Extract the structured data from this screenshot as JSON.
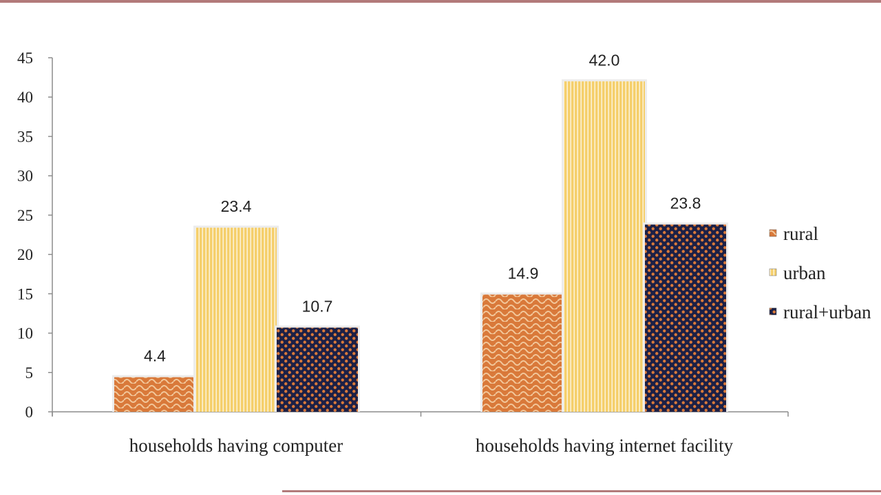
{
  "chart_data": {
    "type": "bar",
    "categories": [
      "households having computer",
      "households having internet facility"
    ],
    "series": [
      {
        "name": "rural",
        "values": [
          4.4,
          14.9
        ],
        "labels": [
          "4.4",
          "14.9"
        ],
        "color": "#d9793a",
        "pattern": "weave"
      },
      {
        "name": "urban",
        "values": [
          23.4,
          42.0
        ],
        "labels": [
          "23.4",
          "42.0"
        ],
        "color": "#f5cf6b",
        "pattern": "vertical-stripes"
      },
      {
        "name": "rural+urban",
        "values": [
          10.7,
          23.8
        ],
        "labels": [
          "10.7",
          "23.8"
        ],
        "color": "#1c2046",
        "pattern": "dots"
      }
    ],
    "ylim": [
      0,
      45
    ],
    "yticks": [
      "0",
      "5",
      "10",
      "15",
      "20",
      "25",
      "30",
      "35",
      "40",
      "45"
    ],
    "xlabel": "",
    "ylabel": "",
    "grid": false,
    "legend_position": "right"
  },
  "colors": {
    "rule": "#b27a7a",
    "axis": "#8c8c8c",
    "text": "#222222",
    "dot_color": "#d9793a",
    "weave_line": "#f2c79a"
  }
}
